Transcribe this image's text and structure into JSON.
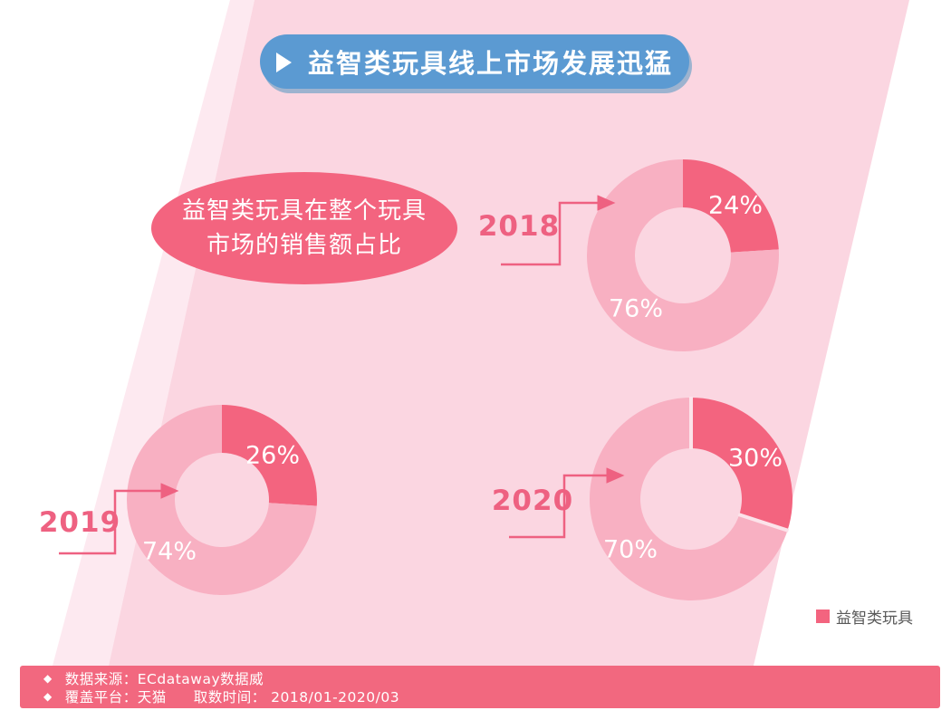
{
  "banner": {
    "title": "益智类玩具线上市场发展迅猛"
  },
  "callout": {
    "line1": "益智类玩具在整个玩具",
    "line2": "市场的销售额占比"
  },
  "chart_data": {
    "type": "pie",
    "subtype": "donut",
    "title": "益智类玩具线上市场发展迅猛",
    "annotation": "益智类玩具在整个玩具市场的销售额占比",
    "unit": "%",
    "legend_position": "bottom-right",
    "legend_entries": [
      "益智类玩具"
    ],
    "charts": [
      {
        "year": "2018",
        "slices": [
          {
            "name": "益智类玩具",
            "value": 24,
            "label": "24%"
          },
          {
            "value": 76,
            "label": "76%"
          }
        ]
      },
      {
        "year": "2019",
        "slices": [
          {
            "name": "益智类玩具",
            "value": 26,
            "label": "26%"
          },
          {
            "value": 74,
            "label": "74%"
          }
        ]
      },
      {
        "year": "2020",
        "slices": [
          {
            "name": "益智类玩具",
            "value": 30,
            "label": "30%"
          },
          {
            "value": 70,
            "label": "70%"
          }
        ]
      }
    ]
  },
  "legend_label": "益智类玩具",
  "footer": {
    "bullet": "◆",
    "row1": "数据来源：ECdataway数据威",
    "row2a": "覆盖平台：天猫",
    "row2b": "取数时间： 2018/01-2020/03"
  },
  "colors": {
    "accent": "#F3647F",
    "accent_light": "#F8B0C2",
    "bg_pink": "#FBD6E1",
    "stripe_pink": "#FDE9F0",
    "banner_blue": "#5B9AD2",
    "banner_shadow": "#9DB3CF",
    "year_pink": "#EE6181",
    "footer_bg": "#F2687F",
    "legend_text": "#595959",
    "divider": "#FCE3EA"
  }
}
